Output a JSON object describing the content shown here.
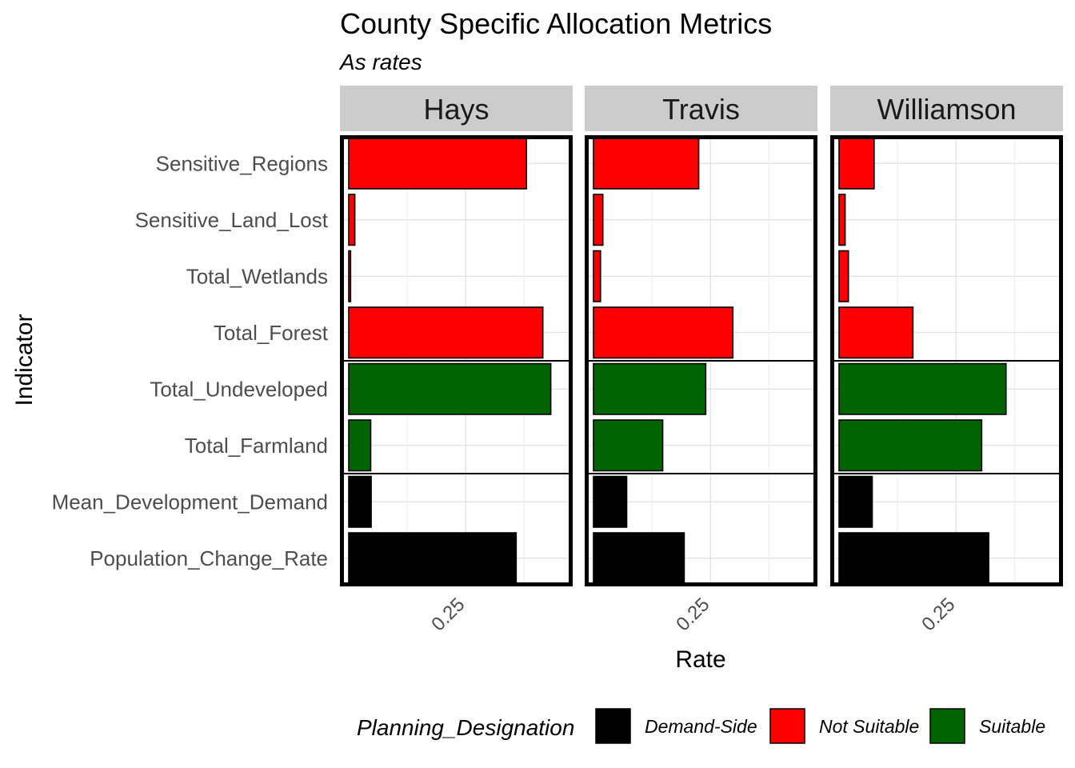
{
  "chart_data": {
    "type": "bar",
    "orientation": "horizontal",
    "title": "County Specific Allocation Metrics",
    "subtitle": "As rates",
    "xlabel": "Rate",
    "ylabel": "Indicator",
    "xlim": [
      0,
      0.46
    ],
    "x_ticks": [
      0.25
    ],
    "x_tick_labels": [
      "0.25"
    ],
    "grid": true,
    "categories": [
      "Sensitive_Regions",
      "Sensitive_Land_Lost",
      "Total_Wetlands",
      "Total_Forest",
      "Total_Undeveloped",
      "Total_Farmland",
      "Mean_Development_Demand",
      "Population_Change_Rate"
    ],
    "category_designation": [
      "Not Suitable",
      "Not Suitable",
      "Not Suitable",
      "Not Suitable",
      "Suitable",
      "Suitable",
      "Demand-Side",
      "Demand-Side"
    ],
    "group_boundaries_after_index": [
      3,
      5
    ],
    "panels": [
      {
        "name": "Hays",
        "values": [
          0.38,
          0.013,
          0.004,
          0.415,
          0.432,
          0.047,
          0.048,
          0.358
        ]
      },
      {
        "name": "Travis",
        "values": [
          0.225,
          0.02,
          0.015,
          0.298,
          0.24,
          0.148,
          0.071,
          0.194
        ]
      },
      {
        "name": "Williamson",
        "values": [
          0.075,
          0.013,
          0.02,
          0.158,
          0.357,
          0.305,
          0.071,
          0.32
        ]
      }
    ],
    "legend": {
      "title": "Planning_Designation",
      "position": "bottom",
      "entries": [
        {
          "label": "Demand-Side",
          "color": "#000000"
        },
        {
          "label": "Not Suitable",
          "color": "#FF0000"
        },
        {
          "label": "Suitable",
          "color": "#006400"
        }
      ]
    }
  }
}
